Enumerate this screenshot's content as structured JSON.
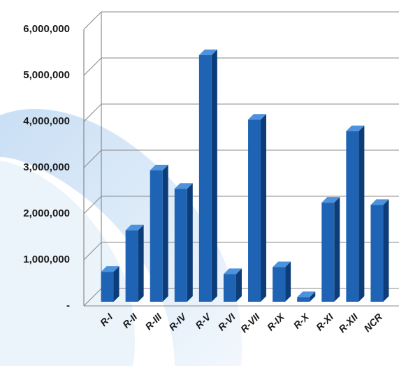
{
  "chart_data": {
    "type": "bar",
    "categories": [
      "R-I",
      "R-II",
      "R-III",
      "R-IV",
      "R-V",
      "R-VI",
      "R-VII",
      "R-IX",
      "R-X",
      "R-XI",
      "R-XII",
      "NCR"
    ],
    "values": [
      650000,
      1550000,
      2850000,
      2450000,
      5350000,
      600000,
      3950000,
      750000,
      100000,
      2150000,
      3700000,
      2100000
    ],
    "color": "#1f63b4",
    "ylim": [
      0,
      6000000
    ],
    "yticks": [
      {
        "value": 0,
        "label": "-"
      },
      {
        "value": 1000000,
        "label": "1,000,000"
      },
      {
        "value": 2000000,
        "label": "2,000,000"
      },
      {
        "value": 3000000,
        "label": "3,000,000"
      },
      {
        "value": 4000000,
        "label": "4,000,000"
      },
      {
        "value": 5000000,
        "label": "5,000,000"
      },
      {
        "value": 6000000,
        "label": "6,000,000"
      }
    ],
    "grid": true
  }
}
